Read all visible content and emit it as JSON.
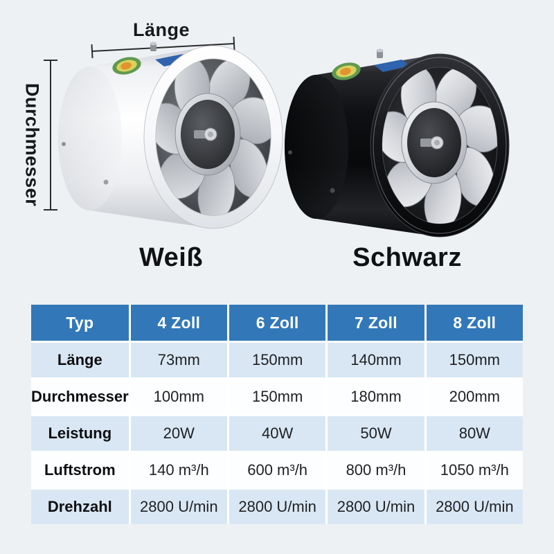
{
  "theme": {
    "page_bg": "#eef1f4",
    "table_header_bg": "#3278b8",
    "table_header_text": "#ffffff",
    "table_row_alt_bg": "#d9e7f4",
    "table_row_bg": "#fdfeff",
    "table_text": "#1e2023",
    "dimension_line_color": "#2b2b2b"
  },
  "diagram": {
    "length_label": "Länge",
    "diameter_label": "Durchmesser",
    "variants": [
      {
        "name": "Weiß"
      },
      {
        "name": "Schwarz"
      }
    ]
  },
  "spec_table": {
    "columns": [
      "Typ",
      "4 Zoll",
      "6 Zoll",
      "7 Zoll",
      "8 Zoll"
    ],
    "rows": [
      {
        "label": "Länge",
        "values": [
          "73mm",
          "150mm",
          "140mm",
          "150mm"
        ]
      },
      {
        "label": "Durchmesser",
        "values": [
          "100mm",
          "150mm",
          "180mm",
          "200mm"
        ]
      },
      {
        "label": "Leistung",
        "values": [
          "20W",
          "40W",
          "50W",
          "80W"
        ]
      },
      {
        "label": "Luftstrom",
        "values": [
          "140 m³/h",
          "600 m³/h",
          "800 m³/h",
          "1050 m³/h"
        ]
      },
      {
        "label": "Drehzahl",
        "values": [
          "2800 U/min",
          "2800 U/min",
          "2800 U/min",
          "2800 U/min"
        ]
      }
    ]
  }
}
